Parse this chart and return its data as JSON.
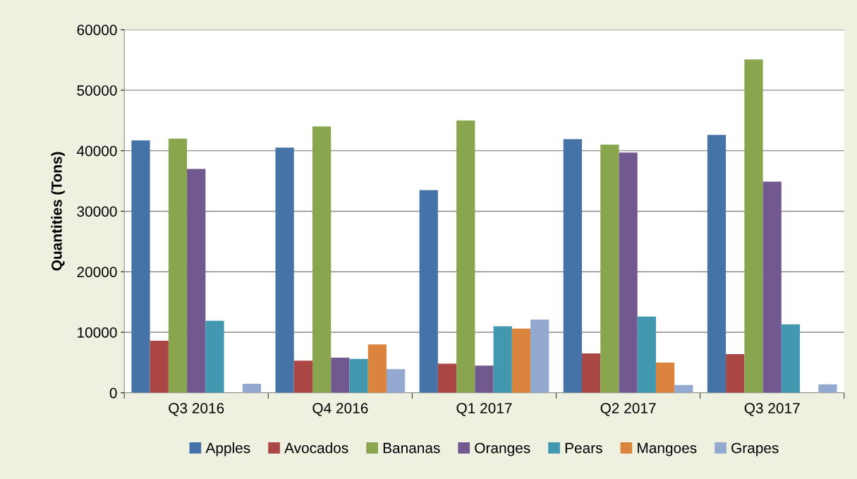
{
  "chart_data": {
    "type": "bar",
    "ylabel": "Quantities (Tons)",
    "categories": [
      "Q3 2016",
      "Q4 2016",
      "Q1 2017",
      "Q2 2017",
      "Q3 2017"
    ],
    "series": [
      {
        "name": "Apples",
        "color": "#4572a7",
        "values": [
          41700,
          40500,
          33500,
          41900,
          42600
        ]
      },
      {
        "name": "Avocados",
        "color": "#aa4643",
        "values": [
          8600,
          5300,
          4800,
          6500,
          6400
        ]
      },
      {
        "name": "Bananas",
        "color": "#89a54e",
        "values": [
          42000,
          44000,
          45000,
          41000,
          55100
        ]
      },
      {
        "name": "Oranges",
        "color": "#71588f",
        "values": [
          37000,
          5800,
          4500,
          39700,
          34900
        ]
      },
      {
        "name": "Pears",
        "color": "#4198af",
        "values": [
          11900,
          5600,
          11000,
          12600,
          11300
        ]
      },
      {
        "name": "Mangoes",
        "color": "#db843d",
        "values": [
          null,
          8000,
          10600,
          5000,
          null
        ]
      },
      {
        "name": "Grapes",
        "color": "#93a9cf",
        "values": [
          1500,
          3900,
          12100,
          1300,
          1400
        ]
      }
    ],
    "ylim": [
      0,
      60000
    ],
    "yticks": [
      0,
      10000,
      20000,
      30000,
      40000,
      50000,
      60000
    ],
    "grid": "y",
    "legend": "bottom"
  }
}
